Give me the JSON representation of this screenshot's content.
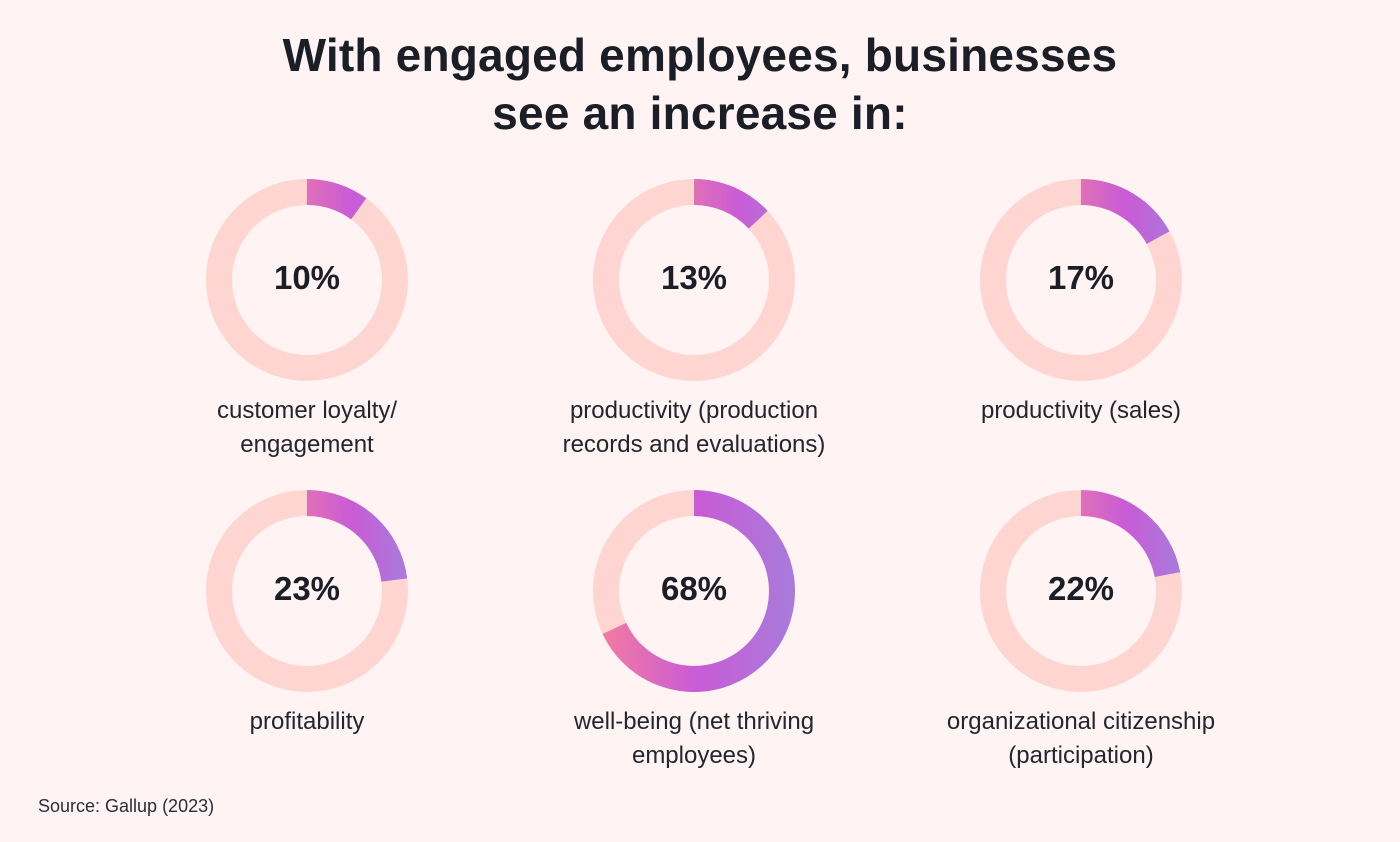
{
  "title": {
    "line1": "With engaged employees, businesses",
    "line2": "see an increase in:"
  },
  "source": "Source: Gallup (2023)",
  "colors": {
    "background": "#FFF3F3",
    "track": "#FFD5D1",
    "gradient_start": "#E070B8",
    "gradient_mid": "#C95BD6",
    "gradient_end": "#A87BDB",
    "gradient_pink": "#F47BA0",
    "text": "#1A1E26"
  },
  "chart_data": {
    "type": "pie",
    "subtype": "donut",
    "title": "With engaged employees, businesses see an increase in:",
    "unit": "%",
    "items": [
      {
        "value": 10,
        "label_text": "10%",
        "label_lines": [
          "customer loyalty/",
          "engagement"
        ]
      },
      {
        "value": 13,
        "label_text": "13%",
        "label_lines": [
          "productivity (production",
          "records and evaluations)"
        ]
      },
      {
        "value": 17,
        "label_text": "17%",
        "label_lines": [
          "productivity (sales)"
        ]
      },
      {
        "value": 23,
        "label_text": "23%",
        "label_lines": [
          "profitability"
        ]
      },
      {
        "value": 68,
        "label_text": "68%",
        "label_lines": [
          "well-being (net thriving",
          "employees)"
        ]
      },
      {
        "value": 22,
        "label_text": "22%",
        "label_lines": [
          "organizational citizenship",
          "(participation)"
        ]
      }
    ]
  }
}
